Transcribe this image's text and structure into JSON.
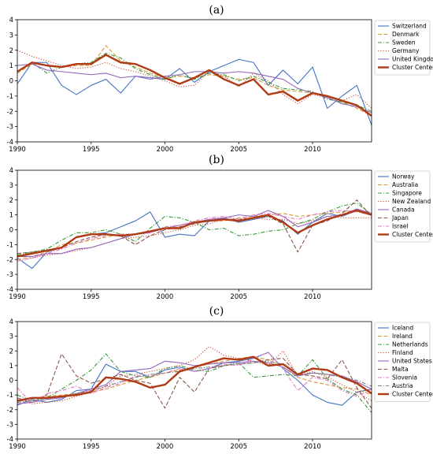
{
  "figure_title": "",
  "colors": {
    "blue": "#4472c4",
    "orange": "#d79a3a",
    "green": "#3a9a3a",
    "red": "#c8503a",
    "purple": "#9467bd",
    "brown": "#8c564b",
    "pink": "#e377c2",
    "center": "#b03a14"
  },
  "chart_data": [
    {
      "type": "line",
      "panel_label": "(a)",
      "xlim": [
        1990,
        2014
      ],
      "ylim": [
        -4,
        4
      ],
      "xticks": [
        1990,
        1995,
        2000,
        2005,
        2010
      ],
      "yticks": [
        -4,
        -3,
        -2,
        -1,
        0,
        1,
        2,
        3,
        4
      ],
      "grid": false,
      "legend_position": "right, outside plot",
      "x": [
        1990,
        1991,
        1992,
        1993,
        1994,
        1995,
        1996,
        1997,
        1998,
        1999,
        2000,
        2001,
        2002,
        2003,
        2004,
        2005,
        2006,
        2007,
        2008,
        2009,
        2010,
        2011,
        2012,
        2013,
        2014
      ],
      "series": [
        {
          "name": "Switzerland",
          "color": "#4472c4",
          "dash": "solid",
          "values": [
            -0.2,
            1.2,
            1.2,
            -0.3,
            -0.9,
            -0.3,
            0.1,
            -0.8,
            0.3,
            0.2,
            0.1,
            0.8,
            -0.1,
            0.6,
            1.0,
            1.4,
            1.2,
            -0.3,
            0.7,
            -0.2,
            0.9,
            -1.8,
            -1.0,
            -0.3,
            -2.9
          ]
        },
        {
          "name": "Denmark",
          "color": "#d79a3a",
          "dash": "dashed",
          "values": [
            0.5,
            1.1,
            1.0,
            0.9,
            1.0,
            1.0,
            2.3,
            1.3,
            0.9,
            0.5,
            0.2,
            0.3,
            0.2,
            0.4,
            0.3,
            0.1,
            0.2,
            -0.3,
            -0.6,
            -0.7,
            -0.8,
            -1.0,
            -1.4,
            -1.8,
            -2.3
          ]
        },
        {
          "name": "Sweden",
          "color": "#3a9a3a",
          "dash": "dashdot",
          "values": [
            0.6,
            1.2,
            0.5,
            0.9,
            1.1,
            1.2,
            1.8,
            1.5,
            0.8,
            0.4,
            0.1,
            0.4,
            0.1,
            0.5,
            0.4,
            0.0,
            0.3,
            -0.1,
            -0.5,
            -0.6,
            -0.7,
            -1.2,
            -1.4,
            -1.6,
            -2.0
          ]
        },
        {
          "name": "Germany",
          "color": "#c8503a",
          "dash": "dotted",
          "values": [
            2.0,
            1.6,
            1.3,
            1.0,
            0.8,
            0.9,
            1.2,
            0.8,
            0.6,
            0.3,
            0.0,
            -0.4,
            -0.3,
            0.6,
            0.3,
            -0.4,
            0.5,
            0.0,
            -0.9,
            -1.5,
            -0.9,
            -1.1,
            -1.3,
            -0.9,
            -1.8
          ]
        },
        {
          "name": "United Kingdom",
          "color": "#9467bd",
          "dash": "solid",
          "values": [
            1.0,
            1.1,
            0.7,
            0.6,
            0.5,
            0.4,
            0.5,
            0.2,
            0.3,
            0.1,
            0.3,
            0.4,
            0.6,
            0.6,
            0.5,
            0.6,
            0.5,
            0.3,
            0.1,
            -0.5,
            -0.8,
            -1.1,
            -1.5,
            -1.7,
            -2.1
          ]
        },
        {
          "name": "Cluster Center",
          "color": "#b03a14",
          "dash": "solid",
          "thick": true,
          "values": [
            0.6,
            1.2,
            1.0,
            0.9,
            1.1,
            1.1,
            1.7,
            1.2,
            1.1,
            0.7,
            0.2,
            -0.2,
            0.2,
            0.7,
            0.1,
            -0.3,
            0.1,
            -0.9,
            -0.7,
            -1.3,
            -0.8,
            -1.0,
            -1.3,
            -1.6,
            -2.3
          ]
        }
      ]
    },
    {
      "type": "line",
      "panel_label": "(b)",
      "xlim": [
        1990,
        2014
      ],
      "ylim": [
        -4,
        4
      ],
      "xticks": [
        1990,
        1995,
        2000,
        2005,
        2010
      ],
      "yticks": [
        -4,
        -3,
        -2,
        -1,
        0,
        1,
        2,
        3,
        4
      ],
      "grid": false,
      "legend_position": "right, outside plot",
      "x": [
        1990,
        1991,
        1992,
        1993,
        1994,
        1995,
        1996,
        1997,
        1998,
        1999,
        2000,
        2001,
        2002,
        2003,
        2004,
        2005,
        2006,
        2007,
        2008,
        2009,
        2010,
        2011,
        2012,
        2013,
        2014
      ],
      "series": [
        {
          "name": "Norway",
          "color": "#4472c4",
          "dash": "solid",
          "values": [
            -1.9,
            -2.6,
            -1.5,
            -1.2,
            -0.5,
            -0.3,
            -0.2,
            0.2,
            0.6,
            1.2,
            -0.5,
            -0.3,
            -0.4,
            0.6,
            0.8,
            0.5,
            0.7,
            0.9,
            0.6,
            -0.3,
            0.5,
            1.1,
            0.9,
            1.3,
            1.1
          ]
        },
        {
          "name": "Australia",
          "color": "#d79a3a",
          "dash": "dashed",
          "values": [
            -2.0,
            -1.8,
            -1.5,
            -1.0,
            -0.9,
            -0.7,
            -0.5,
            -0.3,
            -0.3,
            -0.1,
            0.1,
            0.2,
            0.4,
            0.6,
            0.6,
            0.8,
            0.9,
            1.0,
            1.1,
            0.9,
            1.0,
            1.1,
            1.2,
            1.3,
            1.2
          ]
        },
        {
          "name": "Singapore",
          "color": "#3a9a3a",
          "dash": "dashdot",
          "values": [
            -1.7,
            -1.5,
            -1.3,
            -0.7,
            -0.2,
            -0.2,
            0.0,
            -0.3,
            -0.8,
            0.1,
            0.9,
            0.8,
            0.5,
            0.0,
            0.1,
            -0.4,
            -0.3,
            -0.1,
            0.0,
            0.4,
            0.7,
            1.2,
            1.6,
            1.8,
            1.0
          ]
        },
        {
          "name": "New Zealand",
          "color": "#c8503a",
          "dash": "dotted",
          "values": [
            -2.1,
            -1.9,
            -1.7,
            -1.6,
            -1.4,
            -1.2,
            -0.9,
            -0.6,
            -0.5,
            -0.4,
            -0.2,
            0.0,
            0.3,
            0.4,
            0.7,
            0.6,
            0.8,
            0.7,
            0.7,
            0.4,
            0.6,
            0.9,
            0.8,
            0.8,
            0.8
          ]
        },
        {
          "name": "Canada",
          "color": "#9467bd",
          "dash": "solid",
          "values": [
            -1.8,
            -1.8,
            -1.6,
            -1.6,
            -1.3,
            -1.2,
            -0.9,
            -0.6,
            -0.3,
            -0.2,
            0.1,
            0.3,
            0.5,
            0.7,
            0.8,
            1.0,
            0.9,
            1.3,
            0.9,
            0.2,
            0.5,
            0.9,
            1.0,
            1.4,
            1.1
          ]
        },
        {
          "name": "Japan",
          "color": "#8c564b",
          "dash": "dashed",
          "values": [
            -1.6,
            -1.5,
            -1.4,
            -1.2,
            -0.8,
            -0.5,
            -0.3,
            -0.4,
            -1.0,
            -0.4,
            0.0,
            0.2,
            0.4,
            0.6,
            0.7,
            0.7,
            0.8,
            0.9,
            0.4,
            -1.5,
            0.3,
            0.6,
            1.1,
            2.0,
            0.9
          ]
        },
        {
          "name": "Israel",
          "color": "#e377c2",
          "dash": "dashdot",
          "values": [
            -2.1,
            -1.9,
            -1.6,
            -1.3,
            -0.9,
            -0.6,
            -0.4,
            -0.3,
            -0.3,
            -0.2,
            0.2,
            0.3,
            0.6,
            0.8,
            0.9,
            0.7,
            1.0,
            1.1,
            0.9,
            0.7,
            1.0,
            1.2,
            1.3,
            1.2,
            1.0
          ]
        },
        {
          "name": "Cluster Center",
          "color": "#b03a14",
          "dash": "solid",
          "thick": true,
          "values": [
            -1.8,
            -1.6,
            -1.4,
            -1.2,
            -0.5,
            -0.3,
            -0.3,
            -0.4,
            -0.3,
            -0.1,
            0.1,
            0.1,
            0.5,
            0.6,
            0.7,
            0.6,
            0.8,
            1.0,
            0.5,
            -0.2,
            0.3,
            0.7,
            1.0,
            1.3,
            1.0
          ]
        }
      ]
    },
    {
      "type": "line",
      "panel_label": "(c)",
      "xlim": [
        1990,
        2014
      ],
      "ylim": [
        -4,
        4
      ],
      "xticks": [
        1990,
        1995,
        2000,
        2005,
        2010
      ],
      "yticks": [
        -4,
        -3,
        -2,
        -1,
        0,
        1,
        2,
        3,
        4
      ],
      "grid": false,
      "legend_position": "right, outside plot",
      "x": [
        1990,
        1991,
        1992,
        1993,
        1994,
        1995,
        1996,
        1997,
        1998,
        1999,
        2000,
        2001,
        2002,
        2003,
        2004,
        2005,
        2006,
        2007,
        2008,
        2009,
        2010,
        2011,
        2012,
        2013,
        2014
      ],
      "series": [
        {
          "name": "Iceland",
          "color": "#4472c4",
          "dash": "solid",
          "values": [
            -1.7,
            -1.3,
            -1.5,
            -1.3,
            -0.7,
            -0.6,
            1.1,
            0.6,
            0.6,
            0.2,
            0.7,
            0.9,
            0.6,
            0.8,
            1.2,
            1.3,
            1.5,
            1.9,
            0.8,
            0.0,
            -1.0,
            -1.5,
            -1.7,
            -0.8,
            -0.6
          ]
        },
        {
          "name": "Ireland",
          "color": "#d79a3a",
          "dash": "dashed",
          "values": [
            -1.4,
            -1.2,
            -1.1,
            -1.0,
            -0.9,
            -0.8,
            -0.6,
            -0.3,
            0.0,
            0.2,
            0.5,
            0.7,
            0.9,
            1.1,
            1.3,
            1.5,
            1.6,
            1.4,
            0.9,
            0.2,
            -0.1,
            -0.3,
            -0.5,
            -0.6,
            -1.0
          ]
        },
        {
          "name": "Netherlands",
          "color": "#3a9a3a",
          "dash": "dashdot",
          "values": [
            -1.0,
            -1.4,
            -1.2,
            -0.6,
            0.0,
            0.7,
            1.8,
            0.6,
            0.3,
            0.2,
            0.8,
            1.0,
            0.7,
            0.6,
            1.0,
            1.2,
            0.2,
            0.3,
            0.4,
            0.3,
            1.4,
            0.1,
            -0.6,
            -1.0,
            -2.2
          ]
        },
        {
          "name": "Finland",
          "color": "#c8503a",
          "dash": "dotted",
          "values": [
            -1.3,
            -1.6,
            -1.5,
            -1.4,
            -1.1,
            -0.8,
            -0.4,
            0.3,
            0.4,
            0.6,
            0.8,
            1.0,
            1.4,
            2.3,
            1.7,
            1.5,
            1.3,
            1.0,
            2.0,
            0.3,
            0.6,
            0.2,
            -0.3,
            -0.8,
            -1.4
          ]
        },
        {
          "name": "United States",
          "color": "#9467bd",
          "dash": "solid",
          "values": [
            -1.6,
            -1.5,
            -1.3,
            -1.2,
            -0.9,
            -0.6,
            -0.3,
            0.6,
            0.7,
            0.8,
            1.3,
            1.2,
            1.0,
            1.1,
            1.2,
            1.2,
            1.3,
            1.2,
            0.9,
            0.3,
            0.5,
            0.4,
            0.3,
            -0.1,
            -0.6
          ]
        },
        {
          "name": "Malta",
          "color": "#8c564b",
          "dash": "dashed",
          "values": [
            -1.2,
            -1.5,
            -1.0,
            1.8,
            0.3,
            -0.2,
            0.1,
            0.4,
            0.0,
            -0.2,
            -1.9,
            0.2,
            -0.8,
            0.8,
            1.0,
            1.1,
            1.2,
            1.4,
            1.5,
            0.4,
            0.3,
            0.1,
            1.4,
            -0.5,
            -1.9
          ]
        },
        {
          "name": "Slovenia",
          "color": "#e377c2",
          "dash": "dashdot",
          "values": [
            -0.5,
            -1.6,
            -0.9,
            -0.7,
            -0.4,
            -0.9,
            -0.5,
            -0.2,
            0.3,
            0.3,
            0.5,
            0.8,
            0.6,
            0.8,
            1.1,
            1.0,
            1.5,
            1.9,
            0.8,
            -0.7,
            0.2,
            0.0,
            -0.7,
            -1.1,
            -0.6
          ]
        },
        {
          "name": "Austria",
          "color": "#7f7f7f",
          "dash": "dashdot",
          "values": [
            -1.5,
            -1.4,
            -1.2,
            -1.1,
            -0.9,
            -0.7,
            -0.4,
            -0.1,
            0.2,
            0.4,
            0.5,
            0.6,
            0.8,
            0.9,
            1.0,
            1.1,
            1.2,
            1.3,
            1.1,
            0.4,
            0.5,
            0.4,
            0.2,
            0.0,
            -0.4
          ]
        },
        {
          "name": "Cluster Center",
          "color": "#b03a14",
          "dash": "solid",
          "thick": true,
          "values": [
            -1.4,
            -1.2,
            -1.2,
            -1.1,
            -1.0,
            -0.8,
            0.2,
            0.1,
            -0.1,
            -0.5,
            -0.3,
            0.6,
            0.9,
            1.2,
            1.5,
            1.4,
            1.6,
            1.0,
            1.1,
            0.4,
            0.8,
            0.7,
            0.2,
            -0.2,
            -0.9
          ]
        }
      ]
    }
  ]
}
